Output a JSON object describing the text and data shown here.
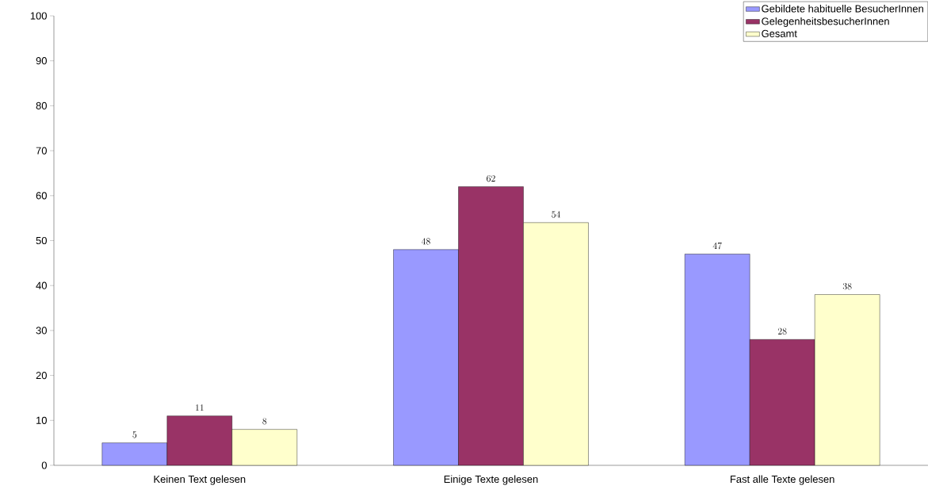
{
  "chart_data": {
    "type": "bar",
    "categories": [
      "Keinen Text gelesen",
      "Einige Texte gelesen",
      "Fast alle Texte gelesen"
    ],
    "series": [
      {
        "name": "Gebildete habituelle BesucherInnen",
        "color": "#9999ff",
        "values": [
          5,
          48,
          47
        ]
      },
      {
        "name": "GelegenheitsbesucherInnen",
        "color": "#993366",
        "values": [
          11,
          62,
          28
        ]
      },
      {
        "name": "Gesamt",
        "color": "#ffffcc",
        "values": [
          8,
          54,
          38
        ]
      }
    ],
    "ylim": [
      0,
      100
    ],
    "yticks": [
      0,
      10,
      20,
      30,
      40,
      50,
      60,
      70,
      80,
      90,
      100
    ],
    "data_labels": true,
    "legend": "top right"
  }
}
